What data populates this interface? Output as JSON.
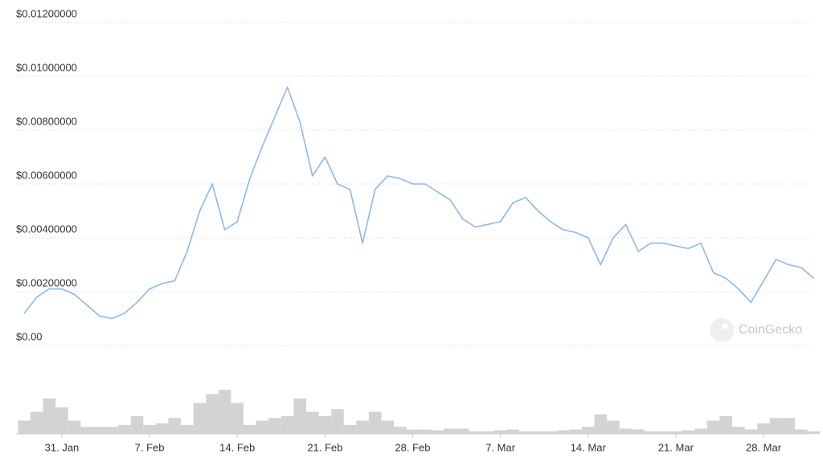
{
  "chart_data": {
    "type": "line",
    "categories": [
      null,
      null,
      null,
      "31. Jan",
      null,
      null,
      null,
      null,
      null,
      null,
      "7. Feb",
      null,
      null,
      null,
      null,
      null,
      null,
      "14. Feb",
      null,
      null,
      null,
      null,
      null,
      null,
      "21. Feb",
      null,
      null,
      null,
      null,
      null,
      null,
      "28. Feb",
      null,
      null,
      null,
      null,
      null,
      null,
      "7. Mar",
      null,
      null,
      null,
      null,
      null,
      null,
      "14. Mar",
      null,
      null,
      null,
      null,
      null,
      null,
      "21. Mar",
      null,
      null,
      null,
      null,
      null,
      null,
      "28. Mar",
      null,
      null,
      null,
      null
    ],
    "values": [
      0.0012,
      0.0018,
      0.0021,
      0.0021,
      0.0019,
      0.0015,
      0.0011,
      0.001,
      0.0012,
      0.0016,
      0.0021,
      0.0023,
      0.0024,
      0.0035,
      0.005,
      0.006,
      0.0043,
      0.0046,
      0.0062,
      0.0074,
      0.0085,
      0.0096,
      0.0083,
      0.0063,
      0.007,
      0.006,
      0.0058,
      0.0038,
      0.0058,
      0.0063,
      0.0062,
      0.006,
      0.006,
      0.0057,
      0.0054,
      0.0047,
      0.0044,
      0.0045,
      0.0046,
      0.0053,
      0.0055,
      0.005,
      0.0046,
      0.0043,
      0.0042,
      0.004,
      0.003,
      0.004,
      0.0045,
      0.0035,
      0.0038,
      0.0038,
      0.0037,
      0.0036,
      0.0038,
      0.0027,
      0.0025,
      0.0021,
      0.0016,
      0.0024,
      0.0032,
      0.003,
      0.0029,
      0.0025
    ],
    "color": "#8db8ec",
    "volumes": [
      15,
      25,
      40,
      30,
      15,
      8,
      8,
      8,
      10,
      20,
      10,
      12,
      18,
      10,
      35,
      45,
      50,
      35,
      10,
      15,
      18,
      20,
      40,
      25,
      20,
      28,
      10,
      15,
      25,
      15,
      8,
      5,
      5,
      4,
      6,
      6,
      3,
      3,
      4,
      5,
      3,
      3,
      3,
      4,
      5,
      8,
      22,
      15,
      6,
      5,
      3,
      3,
      3,
      4,
      6,
      15,
      20,
      8,
      5,
      12,
      18,
      18,
      5,
      3
    ],
    "volume_color": "#d3d3d3",
    "ylim": [
      0,
      0.012
    ],
    "yticks": [
      {
        "value": 0,
        "label": "$0.00"
      },
      {
        "value": 0.002,
        "label": "$0.00200000"
      },
      {
        "value": 0.004,
        "label": "$0.00400000"
      },
      {
        "value": 0.006,
        "label": "$0.00600000"
      },
      {
        "value": 0.008,
        "label": "$0.00800000"
      },
      {
        "value": 0.01,
        "label": "$0.01000000"
      },
      {
        "value": 0.012,
        "label": "$0.01200000"
      }
    ],
    "grid": true,
    "watermark": "CoinGecko"
  }
}
